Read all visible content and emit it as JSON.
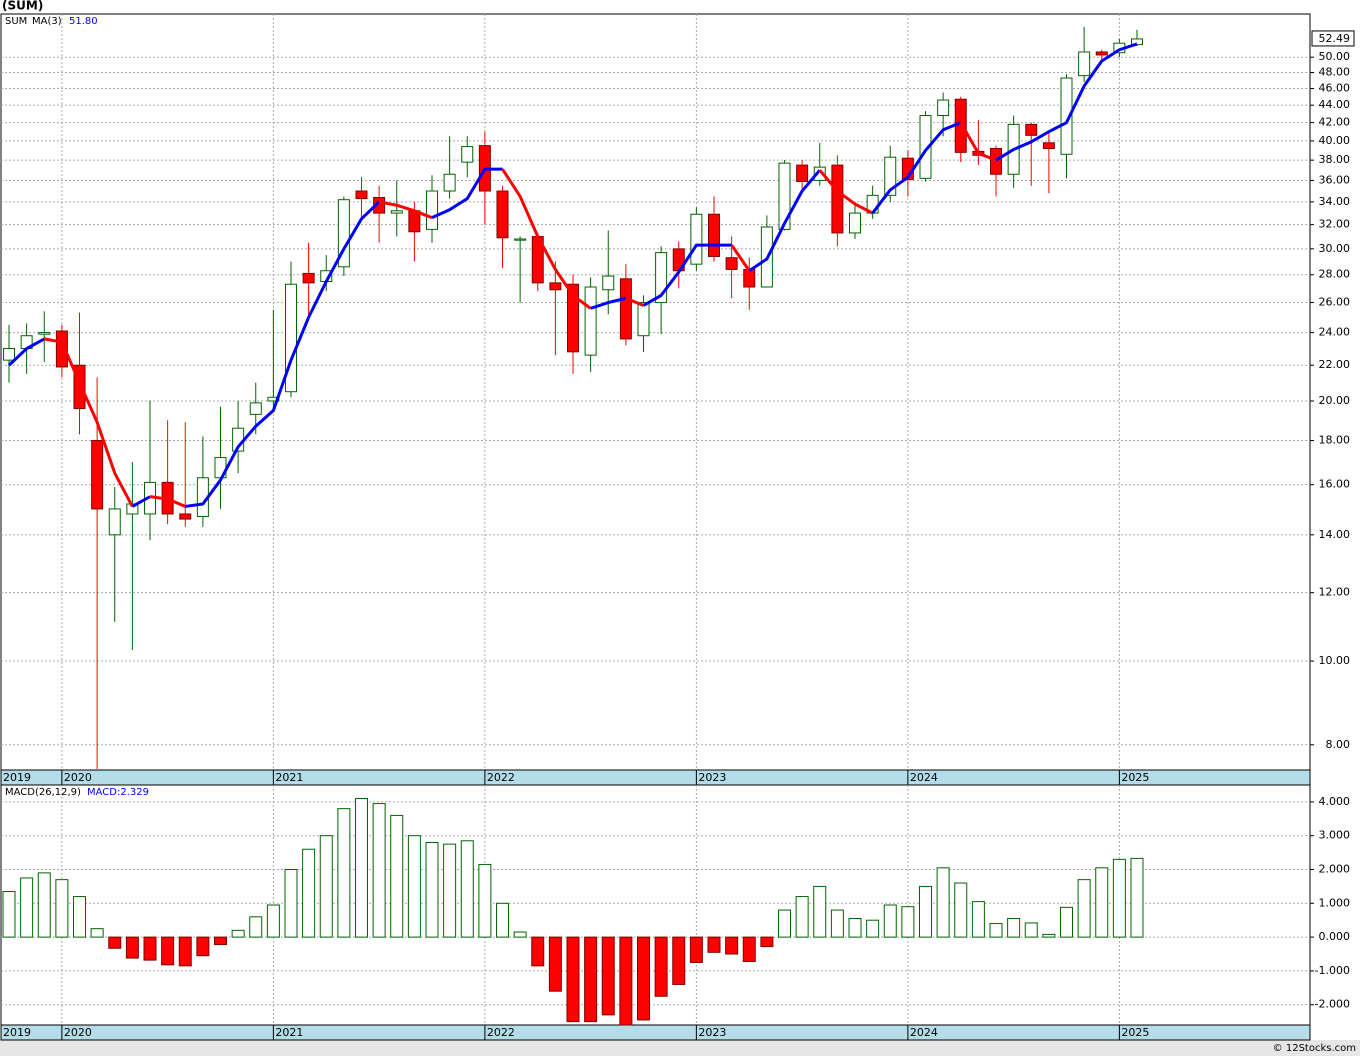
{
  "chart_data": [
    {
      "type": "candlestick",
      "title": "(SUM)",
      "symbol": "SUM",
      "categories": [
        "2019",
        null,
        null,
        "2020",
        null,
        null,
        null,
        null,
        null,
        null,
        null,
        null,
        null,
        null,
        null,
        "2021",
        null,
        null,
        null,
        null,
        null,
        null,
        null,
        null,
        null,
        null,
        null,
        "2022",
        null,
        null,
        null,
        null,
        null,
        null,
        null,
        null,
        null,
        null,
        null,
        "2023",
        null,
        null,
        null,
        null,
        null,
        null,
        null,
        null,
        null,
        null,
        null,
        "2024",
        null,
        null,
        null,
        null,
        null,
        null,
        null,
        null,
        null,
        null,
        null,
        "2025",
        null
      ],
      "open": [
        22.3,
        23.0,
        23.9,
        24.1,
        22.0,
        18.0,
        14.0,
        14.8,
        14.8,
        16.1,
        14.8,
        14.7,
        16.3,
        17.5,
        19.3,
        20.0,
        20.5,
        28.1,
        27.5,
        28.6,
        35.0,
        34.4,
        33.0,
        33.2,
        31.6,
        35.0,
        37.8,
        39.5,
        35.0,
        30.7,
        31.0,
        27.4,
        27.3,
        22.6,
        26.9,
        27.7,
        23.8,
        26.0,
        30.0,
        28.8,
        32.9,
        29.3,
        28.4,
        27.1,
        31.6,
        37.5,
        36.0,
        37.5,
        31.3,
        33.0,
        34.6,
        38.2,
        36.2,
        42.8,
        44.7,
        38.9,
        39.2,
        36.6,
        41.8,
        39.8,
        38.6,
        47.6,
        50.7,
        50.6,
        51.7
      ],
      "high": [
        24.5,
        24.6,
        25.4,
        24.5,
        25.3,
        21.3,
        15.9,
        17.0,
        20.0,
        19.0,
        18.9,
        18.2,
        19.7,
        20.0,
        21.0,
        25.5,
        29.0,
        30.5,
        29.5,
        34.5,
        36.3,
        35.5,
        36.0,
        34.0,
        36.5,
        40.5,
        40.5,
        41.0,
        35.5,
        31.0,
        31.3,
        29.0,
        28.0,
        27.8,
        31.5,
        28.8,
        26.5,
        30.2,
        30.6,
        33.5,
        34.5,
        31.0,
        29.3,
        32.8,
        38.0,
        38.0,
        39.8,
        38.5,
        34.0,
        35.5,
        39.5,
        39.0,
        43.3,
        45.5,
        45.0,
        42.3,
        39.5,
        42.8,
        42.0,
        41.0,
        47.8,
        54.2,
        51.0,
        52.5,
        53.8
      ],
      "low": [
        21.0,
        21.5,
        22.2,
        21.3,
        18.3,
        7.5,
        11.1,
        10.3,
        13.8,
        14.4,
        14.3,
        14.3,
        15.0,
        16.5,
        18.3,
        19.5,
        20.2,
        25.0,
        26.8,
        27.9,
        32.5,
        30.5,
        31.0,
        29.0,
        30.5,
        34.3,
        36.3,
        32.0,
        28.5,
        26.0,
        26.8,
        22.6,
        21.5,
        21.6,
        25.2,
        23.2,
        22.8,
        23.9,
        27.0,
        28.3,
        29.0,
        26.3,
        25.5,
        27.1,
        31.5,
        35.0,
        35.5,
        30.2,
        30.8,
        32.5,
        34.0,
        34.5,
        35.9,
        40.5,
        37.8,
        37.5,
        34.5,
        35.3,
        35.5,
        34.8,
        36.2,
        46.8,
        49.5,
        50.0,
        51.5
      ],
      "close": [
        23.0,
        23.8,
        24.0,
        21.9,
        19.6,
        15.0,
        15.0,
        15.2,
        16.1,
        14.8,
        14.6,
        16.3,
        17.2,
        18.6,
        19.9,
        20.2,
        27.3,
        27.4,
        28.3,
        34.2,
        34.3,
        33.0,
        33.2,
        31.4,
        35.0,
        36.6,
        39.4,
        35.0,
        30.9,
        30.8,
        27.4,
        26.9,
        22.8,
        27.1,
        27.9,
        23.6,
        26.0,
        29.7,
        28.3,
        32.9,
        29.4,
        28.4,
        27.1,
        31.8,
        37.7,
        35.9,
        37.3,
        31.3,
        33.0,
        34.6,
        38.3,
        36.1,
        42.8,
        44.6,
        38.8,
        38.5,
        36.6,
        41.8,
        40.6,
        39.2,
        47.3,
        50.7,
        50.3,
        51.9,
        52.49
      ],
      "up_color": "#006400",
      "down_color": "#ff0000",
      "overlay": {
        "name": "MA(3)",
        "value_label": "51.80",
        "up_color": "#0000ff",
        "down_color": "#ff0000",
        "values": [
          22.0,
          23.0,
          23.6,
          23.4,
          21.0,
          18.9,
          16.5,
          15.1,
          15.5,
          15.4,
          15.1,
          15.2,
          16.2,
          17.7,
          18.7,
          19.5,
          22.3,
          25.0,
          27.5,
          30.0,
          32.5,
          34.0,
          33.7,
          33.2,
          32.6,
          33.3,
          34.3,
          37.1,
          37.1,
          34.5,
          31.0,
          28.4,
          26.5,
          25.6,
          26.0,
          26.3,
          25.8,
          26.5,
          28.2,
          30.3,
          30.3,
          30.3,
          28.3,
          29.2,
          32.1,
          35.0,
          37.0,
          35.0,
          33.8,
          33.0,
          35.1,
          36.3,
          39.0,
          41.2,
          42.0,
          38.7,
          38.0,
          39.1,
          39.9,
          41.0,
          42.0,
          46.3,
          49.5,
          51.0,
          51.8
        ]
      },
      "ylim": [
        7.48,
        56.1
      ],
      "log_scale": true,
      "grid": true,
      "yticks": [
        {
          "value": 8,
          "label": "8.00"
        },
        {
          "value": 10,
          "label": "10.00"
        },
        {
          "value": 12,
          "label": "12.00"
        },
        {
          "value": 14,
          "label": "14.00"
        },
        {
          "value": 16,
          "label": "16.00"
        },
        {
          "value": 18,
          "label": "18.00"
        },
        {
          "value": 20,
          "label": "20.00"
        },
        {
          "value": 22,
          "label": "22.00"
        },
        {
          "value": 24,
          "label": "24.00"
        },
        {
          "value": 26,
          "label": "26.00"
        },
        {
          "value": 28,
          "label": "28.00"
        },
        {
          "value": 30,
          "label": "30.00"
        },
        {
          "value": 32,
          "label": "32.00"
        },
        {
          "value": 34,
          "label": "34.00"
        },
        {
          "value": 36,
          "label": "36.00"
        },
        {
          "value": 38,
          "label": "38.00"
        },
        {
          "value": 40,
          "label": "40.00"
        },
        {
          "value": 42,
          "label": "42.00"
        },
        {
          "value": 44,
          "label": "44.00"
        },
        {
          "value": 46,
          "label": "46.00"
        },
        {
          "value": 48,
          "label": "48.00"
        },
        {
          "value": 50,
          "label": "50.00"
        }
      ]
    },
    {
      "type": "bar",
      "name": "MACD(26,12,9)",
      "value_label": "MACD:2.329",
      "categories": [
        "2019",
        null,
        null,
        "2020",
        null,
        null,
        null,
        null,
        null,
        null,
        null,
        null,
        null,
        null,
        null,
        "2021",
        null,
        null,
        null,
        null,
        null,
        null,
        null,
        null,
        null,
        null,
        null,
        "2022",
        null,
        null,
        null,
        null,
        null,
        null,
        null,
        null,
        null,
        null,
        null,
        "2023",
        null,
        null,
        null,
        null,
        null,
        null,
        null,
        null,
        null,
        null,
        null,
        "2024",
        null,
        null,
        null,
        null,
        null,
        null,
        null,
        null,
        null,
        null,
        null,
        "2025",
        null
      ],
      "values": [
        1.35,
        1.75,
        1.9,
        1.7,
        1.2,
        0.25,
        -0.33,
        -0.62,
        -0.68,
        -0.82,
        -0.85,
        -0.55,
        -0.22,
        0.2,
        0.6,
        0.95,
        2.0,
        2.6,
        3.0,
        3.8,
        4.1,
        3.95,
        3.6,
        3.0,
        2.8,
        2.75,
        2.85,
        2.15,
        1.0,
        0.15,
        -0.85,
        -1.6,
        -2.5,
        -2.5,
        -2.3,
        -2.6,
        -2.45,
        -1.75,
        -1.4,
        -0.75,
        -0.45,
        -0.5,
        -0.72,
        -0.28,
        0.8,
        1.2,
        1.5,
        0.8,
        0.55,
        0.5,
        0.95,
        0.9,
        1.5,
        2.05,
        1.6,
        1.05,
        0.4,
        0.55,
        0.42,
        0.08,
        0.88,
        1.7,
        2.05,
        2.3,
        2.329
      ],
      "pos_color": "#006400",
      "neg_color": "#ff0000",
      "ylim": [
        -2.6,
        4.5
      ],
      "grid": true,
      "yticks": [
        {
          "value": 4,
          "label": "4.000"
        },
        {
          "value": 3,
          "label": "3.000"
        },
        {
          "value": 2,
          "label": "2.000"
        },
        {
          "value": 1,
          "label": "1.000"
        },
        {
          "value": 0,
          "label": "0.000"
        },
        {
          "value": -1,
          "label": "-1.000"
        },
        {
          "value": -2,
          "label": "-2.000"
        }
      ]
    }
  ],
  "footer": "© 12Stocks.com"
}
